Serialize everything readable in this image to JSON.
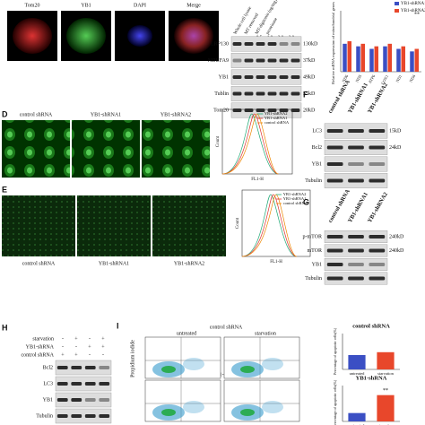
{
  "panel_a": {
    "image_labels": [
      "Tom20",
      "YB1",
      "DAPI",
      "Merge"
    ]
  },
  "panel_b": {
    "columns": [
      "Whole cell lysate",
      "MT removed",
      "MT-digitonin (ug/mg)",
      "proteinase"
    ],
    "concentrations": [
      "0.5",
      "1.0",
      "2.0",
      "2.0"
    ],
    "rows": [
      {
        "protein": "LRP130",
        "size": "130kD"
      },
      {
        "protein": "NDUFA9",
        "size": "37kD"
      },
      {
        "protein": "YB1",
        "size": "49kD"
      },
      {
        "protein": "Tublin",
        "size": "55kD"
      },
      {
        "protein": "Tom20",
        "size": "20kD"
      }
    ]
  },
  "panel_c": {
    "type": "bar",
    "y_label": "Relative mRNA expression of mitochondrial genes",
    "categories": [
      "ND6",
      "ND5",
      "ATP6",
      "COX1",
      "ND1",
      "ND4"
    ],
    "series": [
      {
        "name": "YB1-shRNA1",
        "color": "#3b4fc4",
        "values": [
          0.55,
          0.5,
          0.45,
          0.5,
          0.45,
          0.4
        ]
      },
      {
        "name": "YB1-shRNA2",
        "color": "#e8472b",
        "values": [
          0.6,
          0.55,
          0.5,
          0.55,
          0.5,
          0.45
        ]
      }
    ],
    "ylim": [
      0,
      1.2
    ],
    "annotation": "**"
  },
  "panel_d": {
    "label": "D",
    "image_labels": [
      "control shRNA",
      "YB1-shRNA1",
      "YB1-shRNA2"
    ],
    "histogram": {
      "x_label": "FL1-H",
      "y_label": "Count",
      "legend": [
        "YB1-shRNA2",
        "YB1-shRNA1",
        "control shRNA"
      ]
    }
  },
  "panel_e": {
    "label": "E",
    "image_labels": [
      "control shRNA",
      "YB1-shRNA1",
      "YB1-shRNA2"
    ],
    "histogram": {
      "x_label": "FL1-H",
      "y_label": "Count",
      "legend": [
        "YB1-shRNA2",
        "YB1-shRNA1",
        "control shRNA"
      ]
    }
  },
  "panel_f": {
    "label": "F",
    "columns": [
      "control shRNA",
      "YB1-shRNA1",
      "YB1-shRNA2"
    ],
    "rows": [
      {
        "protein": "LC3",
        "size": "15kD"
      },
      {
        "protein": "Bcl2",
        "size": "24kD"
      },
      {
        "protein": "YB1",
        "size": ""
      },
      {
        "protein": "Tubulin",
        "size": ""
      }
    ]
  },
  "panel_g": {
    "label": "G",
    "columns": [
      "control shRNA",
      "YB1-shRNA1",
      "YB1-shRNA2"
    ],
    "rows": [
      {
        "protein": "p-mTOR",
        "size": "240kD"
      },
      {
        "protein": "mTOR",
        "size": "240kD"
      },
      {
        "protein": "YB1",
        "size": ""
      },
      {
        "protein": "Tubulin",
        "size": ""
      }
    ]
  },
  "panel_h": {
    "label": "H",
    "conditions": [
      {
        "name": "starvation",
        "signs": [
          "-",
          "+",
          "-",
          "+"
        ]
      },
      {
        "name": "YB1-shRNA",
        "signs": [
          "-",
          "-",
          "+",
          "+"
        ]
      },
      {
        "name": "control shRNA",
        "signs": [
          "+",
          "+",
          "-",
          "-"
        ]
      }
    ],
    "rows": [
      "Bcl2",
      "LC3",
      "YB1",
      "Tubulin"
    ]
  },
  "panel_i": {
    "label": "I",
    "y_label": "Propidium iodide",
    "group_titles": [
      "control shRNA",
      "YB1-shRNA"
    ],
    "column_titles": [
      "untreated",
      "starvation"
    ],
    "charts": [
      {
        "type": "bar",
        "title": "control shRNA",
        "y_label": "Percentage of apoptotic cells(%)",
        "categories": [
          "untreated",
          "starvation"
        ],
        "colors": [
          "#3b4fc4",
          "#e8472b"
        ],
        "values": [
          10,
          12
        ],
        "ylim": [
          0,
          25
        ]
      },
      {
        "type": "bar",
        "title": "YB1-shRNA",
        "y_label": "Percentage of apoptotic cells(%)",
        "categories": [
          "untreated",
          "starvation"
        ],
        "colors": [
          "#3b4fc4",
          "#e8472b"
        ],
        "values": [
          7,
          22
        ],
        "ylim": [
          0,
          30
        ],
        "annotation": "**"
      }
    ]
  }
}
